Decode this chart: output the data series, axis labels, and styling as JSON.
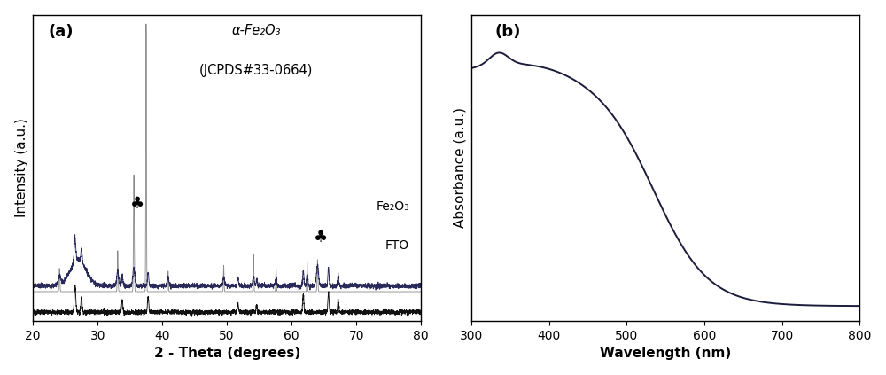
{
  "panel_a": {
    "label": "(a)",
    "xlabel": "2 - Theta (degrees)",
    "ylabel": "Intensity (a.u.)",
    "xlim": [
      20,
      80
    ],
    "ylim": [
      0,
      1.0
    ],
    "annotation_line1": "α-Fe₂O₃",
    "annotation_line2": "(JCPDS#33-0664)",
    "fe2o3_label": "Fe₂O₃",
    "fto_label": "FTO",
    "club_symbol": "♣",
    "xticks": [
      20,
      30,
      40,
      50,
      60,
      70,
      80
    ]
  },
  "panel_b": {
    "label": "(b)",
    "xlabel": "Wavelength (nm)",
    "ylabel": "Absorbance (a.u.)",
    "xlim": [
      300,
      800
    ],
    "ylim": [
      0,
      1.05
    ],
    "line_color": "#1c1c3c",
    "xticks": [
      300,
      400,
      500,
      600,
      700,
      800
    ]
  },
  "bg_color": "#ffffff",
  "spine_color": "#000000"
}
